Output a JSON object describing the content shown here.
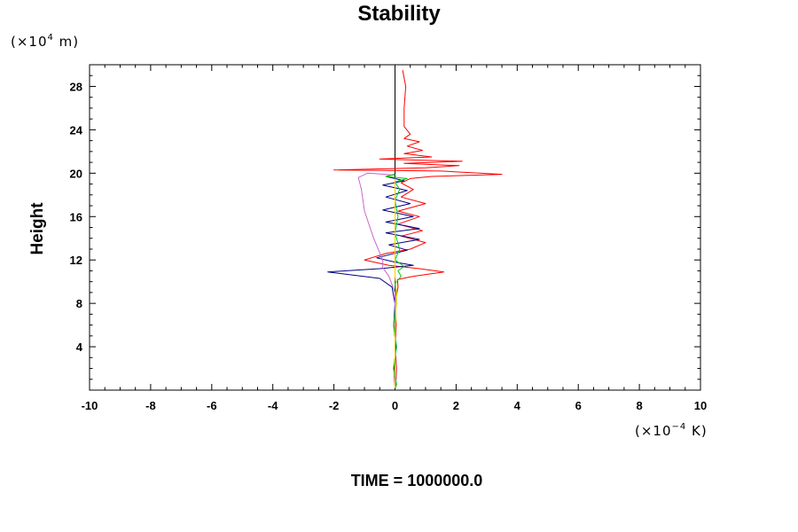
{
  "chart_data": {
    "type": "line",
    "title": "Stability",
    "ylabel": "Height",
    "xlabel": "",
    "y_unit": {
      "prefix": "(×10",
      "exp": "4",
      "suffix": " m)"
    },
    "x_unit": {
      "prefix": "(×10",
      "exp": "−4",
      "suffix": " K)"
    },
    "footer": "TIME = 1000000.0",
    "xlim": [
      -10,
      10
    ],
    "ylim": [
      0,
      30
    ],
    "x_ticks": [
      -10,
      -8,
      -6,
      -4,
      -2,
      0,
      2,
      4,
      6,
      8,
      10
    ],
    "y_ticks": [
      4,
      8,
      12,
      16,
      20,
      24,
      28
    ],
    "grid": false,
    "reference_line": {
      "x": 0,
      "color": "#000000"
    },
    "series": [
      {
        "color": "#ff0000",
        "points": [
          [
            0.02,
            0.2
          ],
          [
            0.05,
            2
          ],
          [
            0.0,
            4
          ],
          [
            0.04,
            6
          ],
          [
            0.0,
            8
          ],
          [
            0.1,
            9.5
          ],
          [
            0.08,
            10.2
          ],
          [
            0.6,
            10.5
          ],
          [
            1.6,
            10.9
          ],
          [
            0.8,
            11.2
          ],
          [
            -0.2,
            11.5
          ],
          [
            -1.0,
            12.0
          ],
          [
            -0.3,
            12.6
          ],
          [
            0.5,
            13.0
          ],
          [
            1.0,
            13.6
          ],
          [
            0.2,
            14.2
          ],
          [
            0.9,
            14.7
          ],
          [
            0.1,
            15.3
          ],
          [
            0.8,
            16.0
          ],
          [
            0.1,
            16.5
          ],
          [
            1.0,
            17.2
          ],
          [
            0.2,
            17.8
          ],
          [
            0.6,
            18.5
          ],
          [
            0.2,
            19.1
          ],
          [
            0.5,
            19.5
          ],
          [
            1.2,
            19.7
          ],
          [
            3.5,
            19.9
          ],
          [
            1.5,
            20.2
          ],
          [
            -2.0,
            20.3
          ],
          [
            1.0,
            20.5
          ],
          [
            2.1,
            20.7
          ],
          [
            0.3,
            20.9
          ],
          [
            2.2,
            21.1
          ],
          [
            -0.5,
            21.3
          ],
          [
            1.2,
            21.5
          ],
          [
            0.3,
            21.8
          ],
          [
            0.9,
            22.1
          ],
          [
            0.4,
            22.5
          ],
          [
            0.8,
            22.9
          ],
          [
            0.3,
            23.2
          ],
          [
            0.5,
            23.6
          ],
          [
            0.3,
            24.3
          ],
          [
            0.3,
            26
          ],
          [
            0.35,
            28
          ],
          [
            0.25,
            29.5
          ]
        ]
      },
      {
        "color": "#000080",
        "points": [
          [
            0.0,
            0.2
          ],
          [
            -0.03,
            2
          ],
          [
            0.03,
            4
          ],
          [
            -0.04,
            6
          ],
          [
            0.0,
            8
          ],
          [
            -0.1,
            9.5
          ],
          [
            -0.5,
            10.3
          ],
          [
            -2.2,
            10.9
          ],
          [
            -0.5,
            11.2
          ],
          [
            0.6,
            11.5
          ],
          [
            0.0,
            11.8
          ],
          [
            -0.6,
            12.2
          ],
          [
            0.4,
            12.9
          ],
          [
            -0.2,
            13.4
          ],
          [
            0.8,
            13.9
          ],
          [
            -0.3,
            14.5
          ],
          [
            0.8,
            14.9
          ],
          [
            -0.3,
            15.5
          ],
          [
            0.6,
            16.0
          ],
          [
            -0.4,
            16.6
          ],
          [
            0.5,
            17.2
          ],
          [
            -0.3,
            17.8
          ],
          [
            0.4,
            18.4
          ],
          [
            -0.4,
            18.9
          ],
          [
            0.3,
            19.3
          ],
          [
            -0.3,
            19.7
          ],
          [
            0.0,
            19.9
          ]
        ]
      },
      {
        "color": "#cc66cc",
        "points": [
          [
            0.0,
            0.2
          ],
          [
            0.0,
            5
          ],
          [
            0.0,
            9
          ],
          [
            -0.2,
            10.5
          ],
          [
            -0.4,
            11.3
          ],
          [
            -0.4,
            12.0
          ],
          [
            -0.7,
            14.0
          ],
          [
            -1.0,
            16.5
          ],
          [
            -1.1,
            18.5
          ],
          [
            -1.2,
            19.6
          ],
          [
            -0.9,
            20.0
          ],
          [
            -0.3,
            19.9
          ],
          [
            0.0,
            19.8
          ]
        ]
      },
      {
        "color": "#00cc00",
        "points": [
          [
            0.0,
            0.2
          ],
          [
            0.05,
            0.5
          ],
          [
            -0.05,
            2
          ],
          [
            0.05,
            4
          ],
          [
            -0.05,
            6
          ],
          [
            0.05,
            8
          ],
          [
            0.0,
            9.8
          ],
          [
            0.2,
            10.5
          ],
          [
            0.1,
            11.0
          ],
          [
            0.3,
            11.4
          ],
          [
            0.0,
            12.0
          ],
          [
            0.15,
            13.0
          ],
          [
            0.0,
            14.5
          ],
          [
            0.1,
            16.0
          ],
          [
            0.0,
            17.5
          ],
          [
            0.15,
            18.5
          ],
          [
            0.0,
            19.2
          ],
          [
            0.4,
            19.5
          ],
          [
            -0.3,
            19.7
          ],
          [
            0.0,
            19.9
          ]
        ]
      },
      {
        "color": "#ffcc00",
        "points": [
          [
            0.0,
            0.2
          ],
          [
            0.0,
            5
          ],
          [
            0.05,
            9
          ],
          [
            0.0,
            10.5
          ],
          [
            0.0,
            19.5
          ]
        ]
      }
    ]
  }
}
